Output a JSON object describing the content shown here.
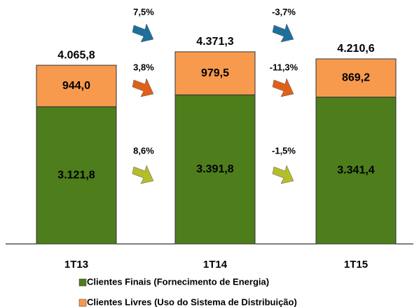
{
  "chart_data": {
    "type": "bar",
    "stacked": true,
    "categories": [
      "1T13",
      "1T14",
      "1T15"
    ],
    "series": [
      {
        "name": "Clientes Finais (Fornecimento de Energia)",
        "color": "#4e7d1c",
        "values": [
          3121.8,
          3391.8,
          3341.4
        ],
        "value_labels": [
          "3.121,8",
          "3.391,8",
          "3.341,4"
        ],
        "changes": [
          8.6,
          -1.5
        ],
        "change_labels": [
          "8,6%",
          "-1,5%"
        ],
        "change_color": "#b5bd2a"
      },
      {
        "name": "Clientes Livres (Uso do Sistema de Distribuição)",
        "color": "#f79a4e",
        "values": [
          944.0,
          979.5,
          869.2
        ],
        "value_labels": [
          "944,0",
          "979,5",
          "869,2"
        ],
        "changes": [
          3.8,
          -11.3
        ],
        "change_labels": [
          "3,8%",
          "-11,3%"
        ],
        "change_color": "#e0601a"
      }
    ],
    "totals": [
      4065.8,
      4371.3,
      4210.6
    ],
    "total_labels": [
      "4.065,8",
      "4.371,3",
      "4.210,6"
    ],
    "total_changes": [
      7.5,
      -3.7
    ],
    "total_change_labels": [
      "7,5%",
      "-3,7%"
    ],
    "total_change_color": "#1f6f9c"
  }
}
